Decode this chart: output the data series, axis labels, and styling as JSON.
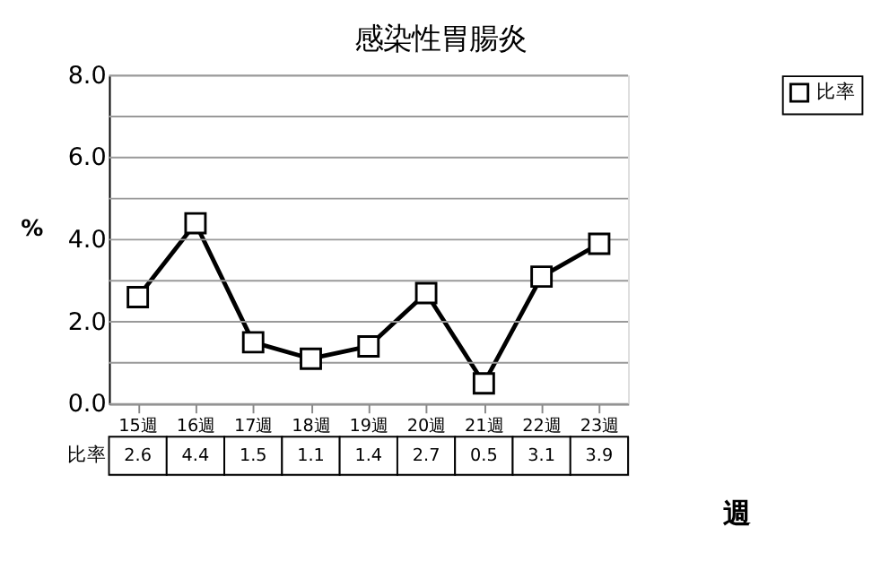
{
  "chart_data": {
    "type": "line",
    "title": "感染性胃腸炎",
    "xlabel": "週",
    "ylabel": "%",
    "categories": [
      "15週",
      "16週",
      "17週",
      "18週",
      "19週",
      "20週",
      "21週",
      "22週",
      "23週"
    ],
    "series": [
      {
        "name": "比率",
        "color": "#000000",
        "values": [
          2.6,
          4.4,
          1.5,
          1.1,
          1.4,
          2.7,
          0.5,
          3.1,
          3.9
        ]
      }
    ],
    "ylim": [
      0,
      8
    ],
    "yticks": [
      {
        "value": 0,
        "label": "0.0"
      },
      {
        "value": 1,
        "label": null
      },
      {
        "value": 2,
        "label": "2.0"
      },
      {
        "value": 3,
        "label": null
      },
      {
        "value": 4,
        "label": "4.0"
      },
      {
        "value": 5,
        "label": null
      },
      {
        "value": 6,
        "label": "6.0"
      },
      {
        "value": 7,
        "label": null
      },
      {
        "value": 8,
        "label": "8.0"
      }
    ],
    "grid": "y",
    "legend": "top right",
    "marker": "square",
    "line_style": "solid",
    "data_labels": true
  }
}
